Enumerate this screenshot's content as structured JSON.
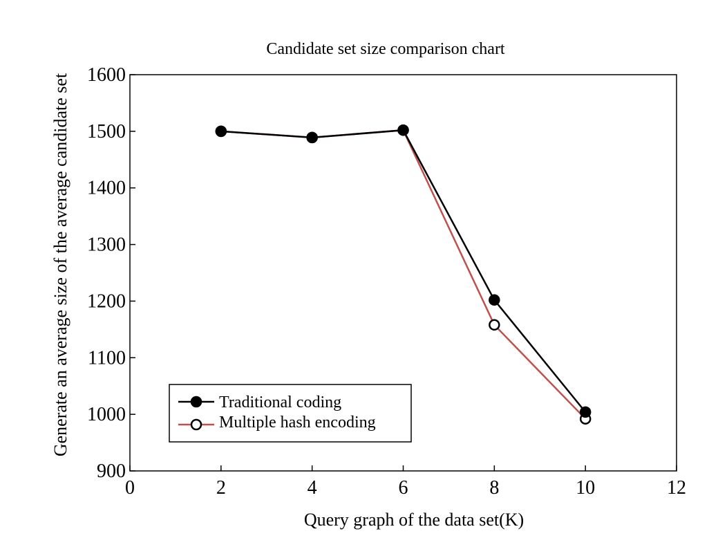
{
  "chart_data": {
    "type": "line",
    "title": "Candidate set size comparison chart",
    "xlabel": "Query graph of the data set(K)",
    "ylabel": "Generate an average size of the average candidate set",
    "xlim": [
      0,
      12
    ],
    "ylim": [
      900,
      1600
    ],
    "xticks": [
      0,
      2,
      4,
      6,
      8,
      10,
      12
    ],
    "yticks": [
      900,
      1000,
      1100,
      1200,
      1300,
      1400,
      1500,
      1600
    ],
    "grid": false,
    "legend_position": "bottom-left",
    "x": [
      2,
      4,
      6,
      8,
      10
    ],
    "series": [
      {
        "name": "Traditional coding",
        "color": "#000000",
        "marker": "filled-circle",
        "values": [
          1500,
          1489,
          1502,
          1202,
          1004
        ]
      },
      {
        "name": "Multiple hash encoding",
        "color": "#c0504d",
        "marker": "open-circle",
        "values": [
          1500,
          1489,
          1502,
          1158,
          992
        ]
      }
    ]
  }
}
